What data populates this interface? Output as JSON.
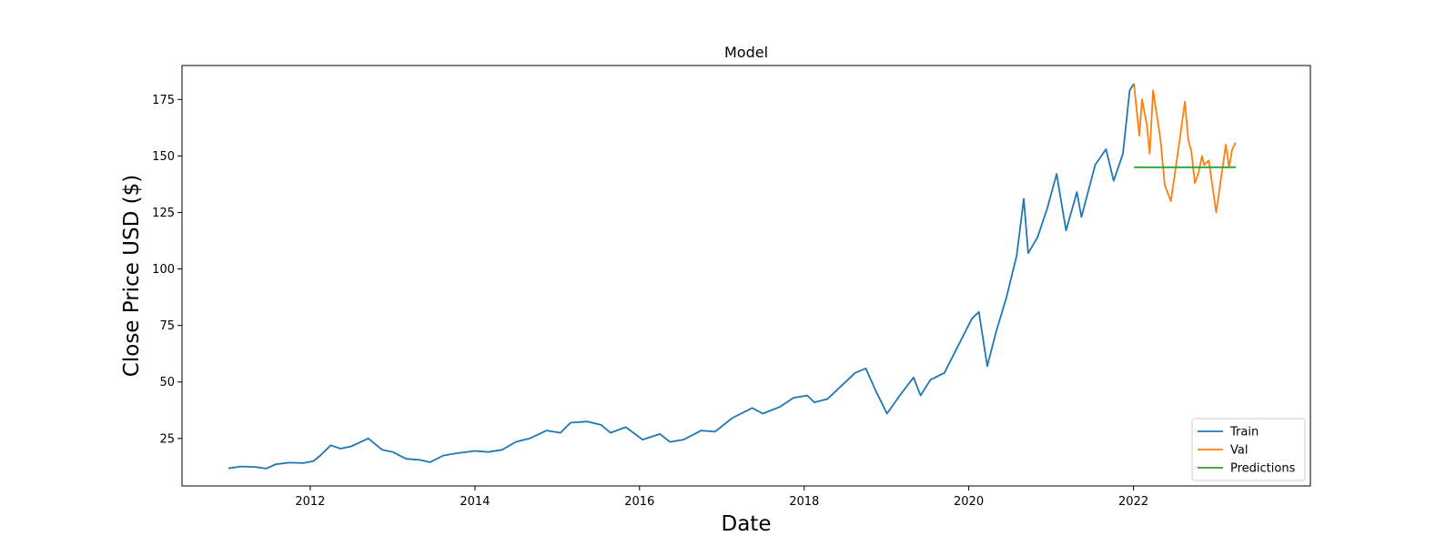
{
  "chart_data": {
    "type": "line",
    "title": "Model",
    "xlabel": "Date",
    "ylabel": "Close Price USD ($)",
    "x_axis_type": "date",
    "xlim": [
      "2010-06-11",
      "2024-02-25"
    ],
    "ylim": [
      4,
      190
    ],
    "xticks": [
      {
        "value": "2012-01-01",
        "label": "2012"
      },
      {
        "value": "2014-01-01",
        "label": "2014"
      },
      {
        "value": "2016-01-01",
        "label": "2016"
      },
      {
        "value": "2018-01-01",
        "label": "2018"
      },
      {
        "value": "2020-01-01",
        "label": "2020"
      },
      {
        "value": "2022-01-01",
        "label": "2022"
      }
    ],
    "yticks": [
      {
        "value": 25,
        "label": "25"
      },
      {
        "value": 50,
        "label": "50"
      },
      {
        "value": 75,
        "label": "75"
      },
      {
        "value": 100,
        "label": "100"
      },
      {
        "value": 125,
        "label": "125"
      },
      {
        "value": 150,
        "label": "150"
      },
      {
        "value": 175,
        "label": "175"
      }
    ],
    "grid": false,
    "legend_position": "lower-right",
    "series": [
      {
        "name": "Train",
        "color": "#1f77b4",
        "points": [
          [
            "2011-01-03",
            11.8
          ],
          [
            "2011-03-01",
            12.6
          ],
          [
            "2011-05-01",
            12.4
          ],
          [
            "2011-06-20",
            11.7
          ],
          [
            "2011-08-01",
            13.6
          ],
          [
            "2011-10-01",
            14.3
          ],
          [
            "2011-12-01",
            14.1
          ],
          [
            "2012-01-15",
            15.0
          ],
          [
            "2012-02-15",
            17.5
          ],
          [
            "2012-04-01",
            22.0
          ],
          [
            "2012-05-15",
            20.5
          ],
          [
            "2012-07-01",
            21.5
          ],
          [
            "2012-09-15",
            25.0
          ],
          [
            "2012-11-15",
            20.0
          ],
          [
            "2013-01-01",
            19.0
          ],
          [
            "2013-03-01",
            16.0
          ],
          [
            "2013-05-01",
            15.5
          ],
          [
            "2013-06-15",
            14.5
          ],
          [
            "2013-08-15",
            17.5
          ],
          [
            "2013-10-15",
            18.5
          ],
          [
            "2014-01-01",
            19.5
          ],
          [
            "2014-03-01",
            19.0
          ],
          [
            "2014-05-01",
            20.0
          ],
          [
            "2014-07-01",
            23.5
          ],
          [
            "2014-09-01",
            25.0
          ],
          [
            "2014-11-15",
            28.5
          ],
          [
            "2015-01-15",
            27.5
          ],
          [
            "2015-03-01",
            32.0
          ],
          [
            "2015-05-15",
            32.5
          ],
          [
            "2015-07-15",
            31.0
          ],
          [
            "2015-08-25",
            27.5
          ],
          [
            "2015-11-01",
            30.0
          ],
          [
            "2016-01-15",
            24.5
          ],
          [
            "2016-04-01",
            27.0
          ],
          [
            "2016-05-15",
            23.5
          ],
          [
            "2016-07-15",
            24.5
          ],
          [
            "2016-10-01",
            28.5
          ],
          [
            "2016-12-01",
            28.0
          ],
          [
            "2017-02-15",
            34.0
          ],
          [
            "2017-05-15",
            38.5
          ],
          [
            "2017-07-01",
            36.0
          ],
          [
            "2017-09-15",
            39.0
          ],
          [
            "2017-11-15",
            43.0
          ],
          [
            "2018-01-15",
            44.0
          ],
          [
            "2018-02-15",
            41.0
          ],
          [
            "2018-04-15",
            42.5
          ],
          [
            "2018-06-01",
            47.0
          ],
          [
            "2018-08-15",
            54.0
          ],
          [
            "2018-10-01",
            56.0
          ],
          [
            "2018-11-15",
            46.0
          ],
          [
            "2019-01-03",
            36.0
          ],
          [
            "2019-03-01",
            44.0
          ],
          [
            "2019-05-01",
            52.0
          ],
          [
            "2019-06-01",
            44.0
          ],
          [
            "2019-07-15",
            51.0
          ],
          [
            "2019-09-15",
            54.0
          ],
          [
            "2019-11-15",
            66.0
          ],
          [
            "2020-01-15",
            78.0
          ],
          [
            "2020-02-15",
            81.0
          ],
          [
            "2020-03-23",
            57.0
          ],
          [
            "2020-05-01",
            72.0
          ],
          [
            "2020-06-15",
            87.0
          ],
          [
            "2020-08-01",
            106.0
          ],
          [
            "2020-09-01",
            131.0
          ],
          [
            "2020-09-21",
            107.0
          ],
          [
            "2020-11-01",
            114.0
          ],
          [
            "2020-12-15",
            127.0
          ],
          [
            "2021-01-25",
            142.0
          ],
          [
            "2021-03-08",
            117.0
          ],
          [
            "2021-04-25",
            134.0
          ],
          [
            "2021-05-15",
            123.0
          ],
          [
            "2021-07-15",
            146.0
          ],
          [
            "2021-09-01",
            153.0
          ],
          [
            "2021-10-05",
            139.0
          ],
          [
            "2021-11-15",
            151.0
          ],
          [
            "2021-12-15",
            179.0
          ],
          [
            "2022-01-03",
            182.0
          ]
        ]
      },
      {
        "name": "Val",
        "color": "#ff7f0e",
        "points": [
          [
            "2022-01-03",
            182.0
          ],
          [
            "2022-01-27",
            159.0
          ],
          [
            "2022-02-08",
            175.0
          ],
          [
            "2022-03-01",
            164.0
          ],
          [
            "2022-03-14",
            151.0
          ],
          [
            "2022-03-29",
            179.0
          ],
          [
            "2022-04-15",
            168.0
          ],
          [
            "2022-05-01",
            157.0
          ],
          [
            "2022-05-20",
            137.0
          ],
          [
            "2022-06-16",
            130.0
          ],
          [
            "2022-07-15",
            150.0
          ],
          [
            "2022-08-17",
            174.0
          ],
          [
            "2022-09-01",
            157.0
          ],
          [
            "2022-09-15",
            152.0
          ],
          [
            "2022-09-30",
            138.0
          ],
          [
            "2022-10-15",
            142.0
          ],
          [
            "2022-11-01",
            150.0
          ],
          [
            "2022-11-10",
            146.0
          ],
          [
            "2022-12-01",
            148.0
          ],
          [
            "2023-01-03",
            125.0
          ],
          [
            "2023-01-20",
            137.0
          ],
          [
            "2023-02-15",
            155.0
          ],
          [
            "2023-03-01",
            145.0
          ],
          [
            "2023-03-15",
            153.0
          ],
          [
            "2023-03-31",
            156.0
          ]
        ]
      },
      {
        "name": "Predictions",
        "color": "#2ca02c",
        "points": [
          [
            "2022-01-03",
            145.0
          ],
          [
            "2023-03-31",
            145.0
          ]
        ]
      }
    ]
  }
}
